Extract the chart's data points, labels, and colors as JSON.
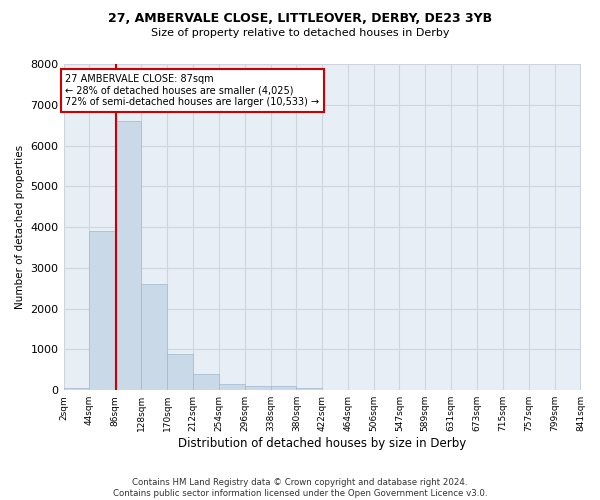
{
  "title": "27, AMBERVALE CLOSE, LITTLEOVER, DERBY, DE23 3YB",
  "subtitle": "Size of property relative to detached houses in Derby",
  "xlabel": "Distribution of detached houses by size in Derby",
  "ylabel": "Number of detached properties",
  "bar_values": [
    50,
    3900,
    6600,
    2600,
    900,
    400,
    150,
    100,
    100,
    50,
    0,
    0,
    0,
    0,
    0,
    0,
    0,
    0,
    0,
    0
  ],
  "bin_edges": [
    2,
    44,
    86,
    128,
    170,
    212,
    254,
    296,
    338,
    380,
    422,
    464,
    506,
    547,
    589,
    631,
    673,
    715,
    757,
    799,
    841
  ],
  "tick_labels": [
    "2sqm",
    "44sqm",
    "86sqm",
    "128sqm",
    "170sqm",
    "212sqm",
    "254sqm",
    "296sqm",
    "338sqm",
    "380sqm",
    "422sqm",
    "464sqm",
    "506sqm",
    "547sqm",
    "589sqm",
    "631sqm",
    "673sqm",
    "715sqm",
    "757sqm",
    "799sqm",
    "841sqm"
  ],
  "bar_color": "#c9d9e8",
  "bar_edgecolor": "#a0b8d0",
  "grid_color": "#cdd5e0",
  "property_line_x": 87,
  "annotation_line1": "27 AMBERVALE CLOSE: 87sqm",
  "annotation_line2": "← 28% of detached houses are smaller (4,025)",
  "annotation_line3": "72% of semi-detached houses are larger (10,533) →",
  "annotation_box_color": "#cc0000",
  "ylim": [
    0,
    8000
  ],
  "yticks": [
    0,
    1000,
    2000,
    3000,
    4000,
    5000,
    6000,
    7000,
    8000
  ],
  "footer_line1": "Contains HM Land Registry data © Crown copyright and database right 2024.",
  "footer_line2": "Contains public sector information licensed under the Open Government Licence v3.0.",
  "background_color": "#ffffff",
  "plot_bg_color": "#e8eef5"
}
